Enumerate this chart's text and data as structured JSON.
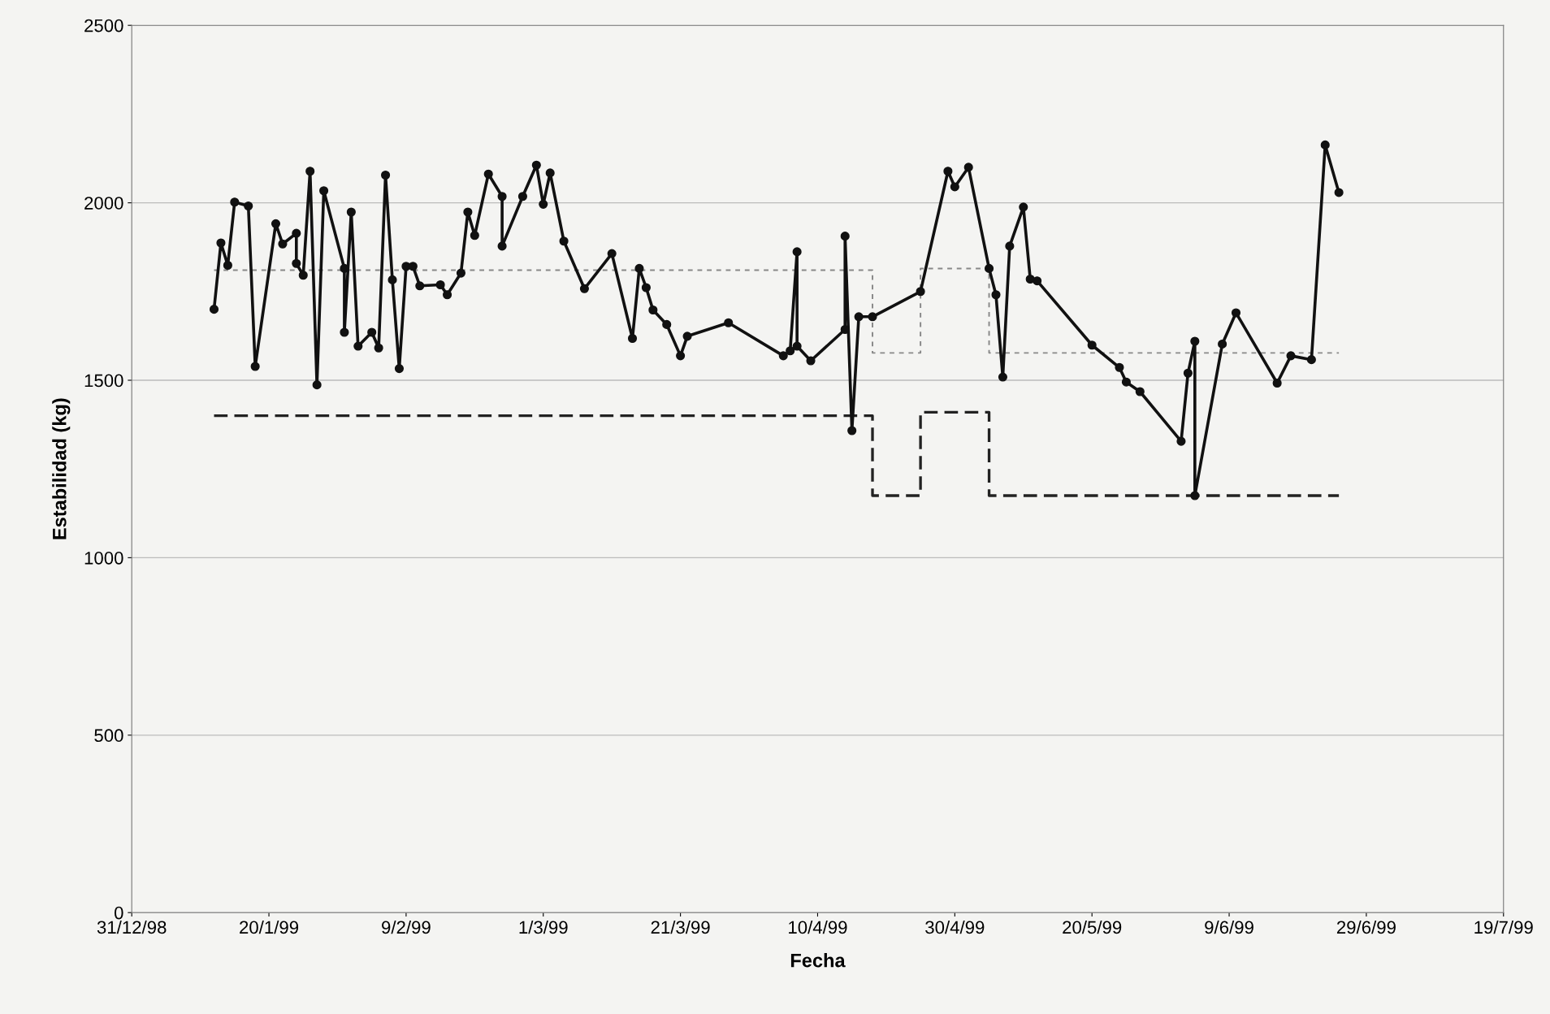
{
  "chart_data": {
    "type": "line",
    "xlabel": "Fecha",
    "ylabel": "Estabilidad (kg)",
    "xlim": [
      "1998-12-31",
      "1999-07-19"
    ],
    "xticks": [
      {
        "value": "1998-12-31",
        "label": "31/12/98"
      },
      {
        "value": "1999-01-20",
        "label": "20/1/99"
      },
      {
        "value": "1999-02-09",
        "label": "9/2/99"
      },
      {
        "value": "1999-03-01",
        "label": "1/3/99"
      },
      {
        "value": "1999-03-21",
        "label": "21/3/99"
      },
      {
        "value": "1999-04-10",
        "label": "10/4/99"
      },
      {
        "value": "1999-04-30",
        "label": "30/4/99"
      },
      {
        "value": "1999-05-20",
        "label": "20/5/99"
      },
      {
        "value": "1999-06-09",
        "label": "9/6/99"
      },
      {
        "value": "1999-06-29",
        "label": "29/6/99"
      },
      {
        "value": "1999-07-19",
        "label": "19/7/99"
      }
    ],
    "ylim": [
      0,
      2500
    ],
    "yticks": [
      0,
      500,
      1000,
      1500,
      2000,
      2500
    ],
    "grid": "y",
    "series": [
      {
        "type": "step",
        "color": "#222222",
        "line_style": "dashed",
        "marker": "none",
        "x": [
          "1999-01-12",
          "1999-04-18",
          "1999-04-25",
          "1999-05-05",
          "1999-06-25"
        ],
        "values": [
          1400,
          1175,
          1410,
          1175,
          1175
        ]
      },
      {
        "type": "step",
        "color": "#888888",
        "line_style": "dotted",
        "marker": "none",
        "x": [
          "1999-01-12",
          "1999-04-18",
          "1999-04-25",
          "1999-05-05",
          "1999-06-25"
        ],
        "values": [
          1810,
          1577,
          1815,
          1577,
          1577
        ]
      },
      {
        "color": "#111111",
        "line_style": "solid",
        "marker": "circle",
        "x": [
          "1999-01-12",
          "1999-01-13",
          "1999-01-14",
          "1999-01-15",
          "1999-01-17",
          "1999-01-18",
          "1999-01-21",
          "1999-01-22",
          "1999-01-24",
          "1999-01-24",
          "1999-01-25",
          "1999-01-26",
          "1999-01-27",
          "1999-01-28",
          "1999-01-31",
          "1999-01-31",
          "1999-02-01",
          "1999-02-02",
          "1999-02-04",
          "1999-02-05",
          "1999-02-06",
          "1999-02-07",
          "1999-02-08",
          "1999-02-09",
          "1999-02-10",
          "1999-02-11",
          "1999-02-14",
          "1999-02-15",
          "1999-02-17",
          "1999-02-18",
          "1999-02-19",
          "1999-02-21",
          "1999-02-23",
          "1999-02-23",
          "1999-02-26",
          "1999-02-28",
          "1999-03-01",
          "1999-03-02",
          "1999-03-04",
          "1999-03-07",
          "1999-03-11",
          "1999-03-14",
          "1999-03-15",
          "1999-03-16",
          "1999-03-17",
          "1999-03-19",
          "1999-03-21",
          "1999-03-22",
          "1999-03-28",
          "1999-04-05",
          "1999-04-06",
          "1999-04-07",
          "1999-04-07",
          "1999-04-09",
          "1999-04-14",
          "1999-04-14",
          "1999-04-15",
          "1999-04-16",
          "1999-04-18",
          "1999-04-25",
          "1999-04-29",
          "1999-04-30",
          "1999-05-02",
          "1999-05-05",
          "1999-05-06",
          "1999-05-07",
          "1999-05-08",
          "1999-05-10",
          "1999-05-11",
          "1999-05-12",
          "1999-05-20",
          "1999-05-24",
          "1999-05-25",
          "1999-05-27",
          "1999-06-02",
          "1999-06-03",
          "1999-06-04",
          "1999-06-04",
          "1999-06-08",
          "1999-06-10",
          "1999-06-16",
          "1999-06-18",
          "1999-06-21",
          "1999-06-23",
          "1999-06-25"
        ],
        "values": [
          1700,
          1887,
          1824,
          2002,
          1991,
          1539,
          1941,
          1884,
          1914,
          1829,
          1796,
          2089,
          1487,
          2034,
          1815,
          1635,
          1974,
          1596,
          1635,
          1591,
          2078,
          1783,
          1533,
          1821,
          1821,
          1766,
          1769,
          1741,
          1802,
          1974,
          1908,
          2081,
          2018,
          1878,
          2018,
          2106,
          1996,
          2084,
          1892,
          1758,
          1857,
          1618,
          1815,
          1761,
          1698,
          1657,
          1569,
          1624,
          1662,
          1569,
          1583,
          1862,
          1596,
          1555,
          1643,
          1906,
          1358,
          1679,
          1679,
          1750,
          2089,
          2045,
          2100,
          1815,
          1741,
          1509,
          1878,
          1988,
          1785,
          1780,
          1599,
          1536,
          1495,
          1468,
          1328,
          1520,
          1610,
          1175,
          1602,
          1690,
          1492,
          1569,
          1558,
          2163,
          2029
        ]
      }
    ]
  }
}
